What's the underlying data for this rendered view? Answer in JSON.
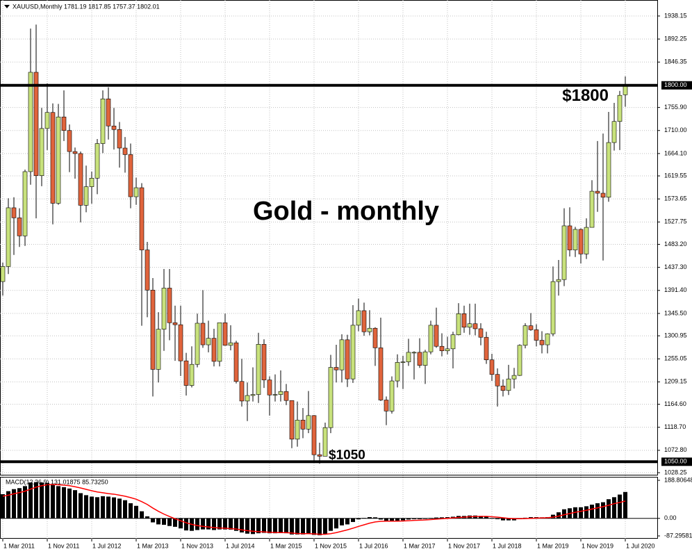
{
  "chart_data": [
    {
      "type": "candlestick",
      "header": "XAUUSD,Monthly  1781.19 1817.85 1757.37 1802.01",
      "title": "Gold - monthly",
      "annotations": [
        {
          "text": "$1800",
          "value": 1800
        },
        {
          "text": "$1050",
          "value": 1050
        }
      ],
      "hlines": [
        {
          "value": 1800,
          "label": "1800.00"
        },
        {
          "value": 1050,
          "label": "1050.00"
        }
      ],
      "up_color": "#c8e27c",
      "down_color": "#e0643c",
      "grid": true,
      "ylim": [
        1022.7,
        1970.0
      ],
      "yticks": [
        1938.15,
        1892.25,
        1846.35,
        {
          "value": 1755.9,
          "label": "1755.90"
        },
        {
          "value": 1710,
          "label": "1710.00"
        },
        {
          "value": 1664.1,
          "label": "1664.10"
        },
        1619.55,
        1573.65,
        1527.75,
        {
          "value": 1483.2,
          "label": "1483.20"
        },
        {
          "value": 1437.3,
          "label": "1437.30"
        },
        {
          "value": 1391.4,
          "label": "1391.40"
        },
        {
          "value": 1345.5,
          "label": "1345.50"
        },
        1300.95,
        1255.05,
        1209.15,
        {
          "value": 1164.6,
          "label": "1164.60"
        },
        {
          "value": 1118.7,
          "label": "1118.70"
        },
        {
          "value": 1072.8,
          "label": "1072.80"
        },
        1028.25
      ],
      "open": [
        1409,
        1439,
        1556,
        1536,
        1500,
        1628,
        1826,
        1620,
        1714,
        1746,
        1565,
        1737,
        1710,
        1668,
        1664,
        1561,
        1598,
        1615,
        1684,
        1773,
        1719,
        1712,
        1675,
        1662,
        1578,
        1596,
        1472,
        1392,
        1234,
        1314,
        1396,
        1327,
        1323,
        1251,
        1202,
        1244,
        1326,
        1283,
        1296,
        1250,
        1327,
        1282,
        1287,
        1210,
        1171,
        1182,
        1184,
        1284,
        1213,
        1183,
        1184,
        1190,
        1172,
        1095,
        1133,
        1115,
        1142,
        1064,
        1061,
        1118,
        1238,
        1233,
        1293,
        1215,
        1322,
        1351,
        1309,
        1316,
        1277,
        1173,
        1151,
        1211,
        1248,
        1249,
        1268,
        1268,
        1242,
        1269,
        1322,
        1280,
        1271,
        1275,
        1303,
        1345,
        1318,
        1325,
        1315,
        1298,
        1253,
        1224,
        1201,
        1192,
        1215,
        1222,
        1282,
        1321,
        1313,
        1292,
        1283,
        1305,
        1409,
        1413,
        1520,
        1472,
        1513,
        1464,
        1517,
        1589,
        1585,
        1577,
        1686,
        1728,
        1781.19
      ],
      "high": [
        1447,
        1575,
        1577,
        1555,
        1632,
        1913,
        1921,
        1755,
        1804,
        1764,
        1763,
        1790,
        1722,
        1676,
        1668,
        1640,
        1628,
        1693,
        1790,
        1796,
        1755,
        1727,
        1697,
        1684,
        1616,
        1605,
        1488,
        1416,
        1348,
        1434,
        1434,
        1361,
        1361,
        1267,
        1280,
        1345,
        1392,
        1331,
        1315,
        1326,
        1345,
        1322,
        1291,
        1255,
        1208,
        1238,
        1307,
        1294,
        1220,
        1224,
        1232,
        1205,
        1172,
        1170,
        1157,
        1191,
        1143,
        1088,
        1128,
        1263,
        1283,
        1304,
        1303,
        1362,
        1375,
        1367,
        1352,
        1318,
        1337,
        1180,
        1220,
        1264,
        1261,
        1295,
        1270,
        1296,
        1273,
        1331,
        1357,
        1306,
        1299,
        1309,
        1366,
        1361,
        1365,
        1365,
        1326,
        1309,
        1265,
        1236,
        1214,
        1243,
        1237,
        1284,
        1326,
        1346,
        1324,
        1310,
        1306,
        1439,
        1452,
        1555,
        1557,
        1518,
        1515,
        1535,
        1611,
        1689,
        1704,
        1747,
        1765,
        1789,
        1817.85
      ],
      "low": [
        1381,
        1424,
        1462,
        1478,
        1480,
        1602,
        1535,
        1599,
        1671,
        1523,
        1562,
        1689,
        1627,
        1614,
        1527,
        1547,
        1564,
        1583,
        1665,
        1692,
        1672,
        1636,
        1626,
        1555,
        1562,
        1321,
        1338,
        1180,
        1208,
        1271,
        1292,
        1251,
        1221,
        1182,
        1198,
        1238,
        1277,
        1268,
        1240,
        1240,
        1281,
        1272,
        1206,
        1160,
        1131,
        1170,
        1167,
        1197,
        1142,
        1170,
        1170,
        1163,
        1077,
        1080,
        1097,
        1107,
        1052,
        1046,
        1061,
        1107,
        1208,
        1208,
        1199,
        1207,
        1310,
        1301,
        1302,
        1241,
        1171,
        1123,
        1146,
        1198,
        1195,
        1241,
        1214,
        1237,
        1205,
        1264,
        1277,
        1260,
        1264,
        1236,
        1302,
        1307,
        1303,
        1302,
        1282,
        1245,
        1211,
        1160,
        1180,
        1183,
        1196,
        1221,
        1276,
        1311,
        1280,
        1266,
        1266,
        1300,
        1381,
        1400,
        1459,
        1458,
        1445,
        1454,
        1517,
        1548,
        1451,
        1568,
        1670,
        1671,
        1757.37
      ],
      "close": [
        1439,
        1556,
        1536,
        1500,
        1628,
        1826,
        1620,
        1714,
        1746,
        1565,
        1737,
        1710,
        1668,
        1664,
        1561,
        1598,
        1615,
        1684,
        1773,
        1719,
        1712,
        1675,
        1662,
        1578,
        1596,
        1472,
        1392,
        1234,
        1314,
        1396,
        1327,
        1323,
        1251,
        1202,
        1244,
        1326,
        1283,
        1296,
        1250,
        1327,
        1282,
        1287,
        1210,
        1171,
        1182,
        1184,
        1284,
        1213,
        1183,
        1184,
        1190,
        1172,
        1095,
        1133,
        1115,
        1142,
        1064,
        1061,
        1118,
        1238,
        1233,
        1293,
        1215,
        1322,
        1351,
        1309,
        1316,
        1277,
        1173,
        1151,
        1211,
        1248,
        1249,
        1268,
        1268,
        1242,
        1269,
        1322,
        1280,
        1271,
        1275,
        1303,
        1345,
        1318,
        1325,
        1315,
        1298,
        1253,
        1224,
        1201,
        1192,
        1215,
        1222,
        1282,
        1321,
        1313,
        1292,
        1283,
        1305,
        1409,
        1413,
        1520,
        1472,
        1513,
        1464,
        1517,
        1589,
        1585,
        1577,
        1686,
        1728,
        1780,
        1802.01
      ]
    },
    {
      "type": "macd",
      "label": "MACD(12,26,9) 131.01875 85.73250",
      "color": "#000000",
      "signal_color": "#ff0000",
      "ylim": [
        -101.1,
        206.1
      ],
      "yticks": [
        188.80648,
        {
          "value": 0,
          "label": "0.00"
        },
        -87.29581
      ],
      "values": [
        120,
        135,
        145,
        150,
        160,
        178,
        180,
        178,
        176,
        165,
        160,
        155,
        148,
        140,
        125,
        115,
        108,
        105,
        110,
        108,
        104,
        98,
        90,
        75,
        62,
        35,
        10,
        -20,
        -30,
        -32,
        -38,
        -42,
        -50,
        -60,
        -62,
        -58,
        -55,
        -55,
        -58,
        -55,
        -55,
        -56,
        -62,
        -70,
        -76,
        -78,
        -74,
        -72,
        -74,
        -74,
        -73,
        -74,
        -80,
        -80,
        -80,
        -78,
        -82,
        -84,
        -78,
        -62,
        -50,
        -35,
        -30,
        -18,
        -5,
        2,
        6,
        5,
        -6,
        -14,
        -16,
        -12,
        -10,
        -6,
        -4,
        -4,
        -3,
        2,
        4,
        5,
        6,
        8,
        12,
        12,
        14,
        14,
        12,
        8,
        2,
        -4,
        -10,
        -10,
        -10,
        -4,
        3,
        6,
        6,
        5,
        6,
        18,
        30,
        45,
        50,
        55,
        55,
        60,
        68,
        75,
        80,
        95,
        105,
        118,
        131.01875
      ],
      "signal": [
        110,
        115,
        122,
        128,
        135,
        145,
        155,
        162,
        167,
        168,
        167,
        165,
        162,
        157,
        151,
        144,
        137,
        131,
        127,
        123,
        120,
        115,
        110,
        103,
        95,
        83,
        69,
        51,
        35,
        21,
        9,
        -2,
        -12,
        -22,
        -30,
        -36,
        -40,
        -43,
        -46,
        -48,
        -49,
        -51,
        -53,
        -57,
        -61,
        -64,
        -66,
        -67,
        -69,
        -70,
        -71,
        -71,
        -73,
        -75,
        -76,
        -76,
        -77,
        -79,
        -79,
        -76,
        -71,
        -64,
        -57,
        -49,
        -40,
        -32,
        -24,
        -18,
        -15,
        -14,
        -14,
        -14,
        -13,
        -12,
        -10,
        -9,
        -8,
        -6,
        -4,
        -2,
        0,
        2,
        4,
        6,
        8,
        9,
        10,
        10,
        8,
        6,
        3,
        0,
        -2,
        -2,
        -1,
        0,
        1,
        2,
        3,
        6,
        11,
        18,
        24,
        30,
        35,
        40,
        46,
        52,
        58,
        65,
        73,
        79,
        85.7325
      ],
      "categories": [
        "1 Mar 2011",
        null,
        null,
        null,
        null,
        null,
        null,
        null,
        "1 Nov 2011",
        null,
        null,
        null,
        null,
        null,
        null,
        null,
        "1 Jul 2012",
        null,
        null,
        null,
        null,
        null,
        null,
        null,
        "1 Mar 2013",
        null,
        null,
        null,
        null,
        null,
        null,
        null,
        "1 Nov 2013",
        null,
        null,
        null,
        null,
        null,
        null,
        null,
        "1 Jul 2014",
        null,
        null,
        null,
        null,
        null,
        null,
        null,
        "1 Mar 2015",
        null,
        null,
        null,
        null,
        null,
        null,
        null,
        "1 Nov 2015",
        null,
        null,
        null,
        null,
        null,
        null,
        null,
        "1 Jul 2016",
        null,
        null,
        null,
        null,
        null,
        null,
        null,
        "1 Mar 2017",
        null,
        null,
        null,
        null,
        null,
        null,
        null,
        "1 Nov 2017",
        null,
        null,
        null,
        null,
        null,
        null,
        null,
        "1 Jul 2018",
        null,
        null,
        null,
        null,
        null,
        null,
        null,
        "1 Mar 2019",
        null,
        null,
        null,
        null,
        null,
        null,
        null,
        "1 Nov 2019",
        null,
        null,
        null,
        null,
        null,
        null,
        null,
        "1 Jul 2020"
      ]
    }
  ]
}
